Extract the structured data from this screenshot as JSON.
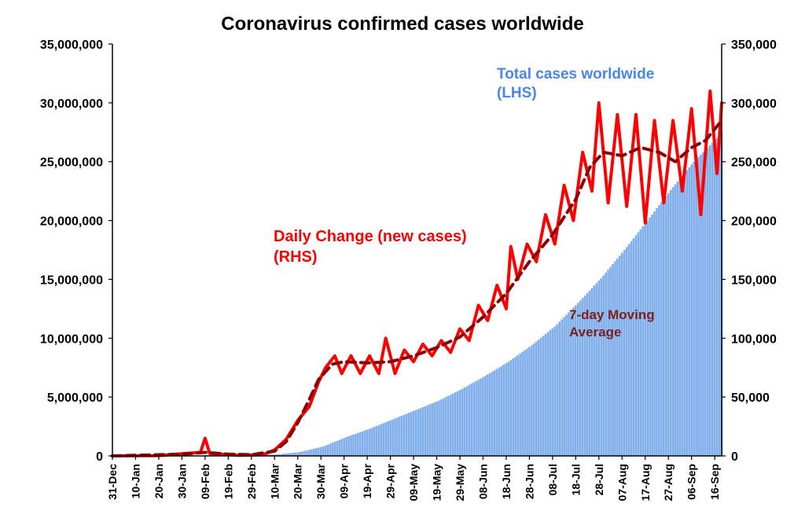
{
  "chart_data": {
    "type": "bar+line",
    "title": "Coronavirus confirmed cases worldwide",
    "x_tick_labels": [
      "31-Dec",
      "10-Jan",
      "20-Jan",
      "30-Jan",
      "09-Feb",
      "19-Feb",
      "29-Feb",
      "10-Mar",
      "20-Mar",
      "30-Mar",
      "09-Apr",
      "19-Apr",
      "29-Apr",
      "09-May",
      "19-May",
      "29-May",
      "08-Jun",
      "18-Jun",
      "28-Jun",
      "08-Jul",
      "18-Jul",
      "28-Jul",
      "07-Aug",
      "17-Aug",
      "27-Aug",
      "06-Sep",
      "16-Sep"
    ],
    "x_range_days": [
      0,
      263
    ],
    "y_left": {
      "min": 0,
      "max": 35000000,
      "ticks": [
        "0",
        "5,000,000",
        "10,000,000",
        "15,000,000",
        "20,000,000",
        "25,000,000",
        "30,000,000",
        "35,000,000"
      ]
    },
    "y_right": {
      "min": 0,
      "max": 350000,
      "ticks": [
        "0",
        "50,000",
        "100,000",
        "150,000",
        "200,000",
        "250,000",
        "300,000",
        "350,000"
      ]
    },
    "grid": false,
    "annotations": {
      "total": [
        "Total cases worldwide",
        "(LHS)"
      ],
      "daily": [
        "Daily Change (new cases)",
        "(RHS)"
      ],
      "ma": [
        "7-day Moving",
        "Average"
      ]
    },
    "series": [
      {
        "name": "Total cases worldwide (LHS)",
        "type": "bar",
        "axis": "left",
        "color": "#7FAEEA",
        "points": [
          [
            0,
            0
          ],
          [
            31,
            10000
          ],
          [
            41,
            40000
          ],
          [
            51,
            75000
          ],
          [
            61,
            90000
          ],
          [
            71,
            120000
          ],
          [
            81,
            330000
          ],
          [
            91,
            800000
          ],
          [
            101,
            1600000
          ],
          [
            111,
            2300000
          ],
          [
            121,
            3100000
          ],
          [
            131,
            3900000
          ],
          [
            141,
            4700000
          ],
          [
            151,
            5700000
          ],
          [
            161,
            6800000
          ],
          [
            171,
            8000000
          ],
          [
            181,
            9400000
          ],
          [
            191,
            11000000
          ],
          [
            201,
            13000000
          ],
          [
            211,
            15100000
          ],
          [
            221,
            17500000
          ],
          [
            231,
            20000000
          ],
          [
            241,
            22600000
          ],
          [
            251,
            25000000
          ],
          [
            261,
            27000000
          ],
          [
            263,
            27500000
          ]
        ]
      },
      {
        "name": "Daily Change (new cases) (RHS)",
        "type": "line",
        "axis": "right",
        "color": "#FF0000",
        "points": [
          [
            0,
            0
          ],
          [
            20,
            200
          ],
          [
            30,
            1800
          ],
          [
            38,
            3000
          ],
          [
            40,
            15000
          ],
          [
            42,
            2000
          ],
          [
            55,
            500
          ],
          [
            65,
            1000
          ],
          [
            70,
            5000
          ],
          [
            75,
            14000
          ],
          [
            80,
            30000
          ],
          [
            85,
            42000
          ],
          [
            89,
            63000
          ],
          [
            92,
            75000
          ],
          [
            96,
            85000
          ],
          [
            99,
            70000
          ],
          [
            103,
            85000
          ],
          [
            107,
            70000
          ],
          [
            111,
            85000
          ],
          [
            115,
            70000
          ],
          [
            118,
            100000
          ],
          [
            122,
            70000
          ],
          [
            126,
            90000
          ],
          [
            130,
            80000
          ],
          [
            134,
            95000
          ],
          [
            138,
            85000
          ],
          [
            142,
            98000
          ],
          [
            146,
            88000
          ],
          [
            150,
            108000
          ],
          [
            154,
            98000
          ],
          [
            158,
            128000
          ],
          [
            162,
            115000
          ],
          [
            166,
            145000
          ],
          [
            170,
            125000
          ],
          [
            172,
            178000
          ],
          [
            175,
            150000
          ],
          [
            179,
            180000
          ],
          [
            183,
            165000
          ],
          [
            187,
            205000
          ],
          [
            191,
            180000
          ],
          [
            195,
            230000
          ],
          [
            199,
            200000
          ],
          [
            203,
            258000
          ],
          [
            207,
            225000
          ],
          [
            210,
            300000
          ],
          [
            214,
            215000
          ],
          [
            218,
            290000
          ],
          [
            222,
            212000
          ],
          [
            226,
            290000
          ],
          [
            230,
            198000
          ],
          [
            234,
            285000
          ],
          [
            238,
            215000
          ],
          [
            242,
            285000
          ],
          [
            246,
            225000
          ],
          [
            250,
            295000
          ],
          [
            254,
            205000
          ],
          [
            258,
            310000
          ],
          [
            261,
            240000
          ],
          [
            263,
            300000
          ]
        ]
      },
      {
        "name": "7-day Moving Average",
        "type": "line",
        "axis": "right",
        "color": "#8B0000",
        "dash": true,
        "points": [
          [
            0,
            0
          ],
          [
            30,
            1500
          ],
          [
            40,
            3000
          ],
          [
            50,
            1500
          ],
          [
            60,
            1000
          ],
          [
            70,
            4000
          ],
          [
            75,
            12000
          ],
          [
            80,
            28000
          ],
          [
            85,
            48000
          ],
          [
            89,
            65000
          ],
          [
            95,
            78000
          ],
          [
            100,
            80000
          ],
          [
            110,
            79000
          ],
          [
            120,
            80000
          ],
          [
            130,
            85000
          ],
          [
            140,
            92000
          ],
          [
            150,
            101000
          ],
          [
            160,
            118000
          ],
          [
            170,
            138000
          ],
          [
            180,
            165000
          ],
          [
            190,
            188000
          ],
          [
            200,
            218000
          ],
          [
            206,
            245000
          ],
          [
            212,
            258000
          ],
          [
            220,
            255000
          ],
          [
            228,
            262000
          ],
          [
            236,
            258000
          ],
          [
            243,
            250000
          ],
          [
            250,
            262000
          ],
          [
            256,
            268000
          ],
          [
            263,
            285000
          ]
        ]
      }
    ]
  }
}
